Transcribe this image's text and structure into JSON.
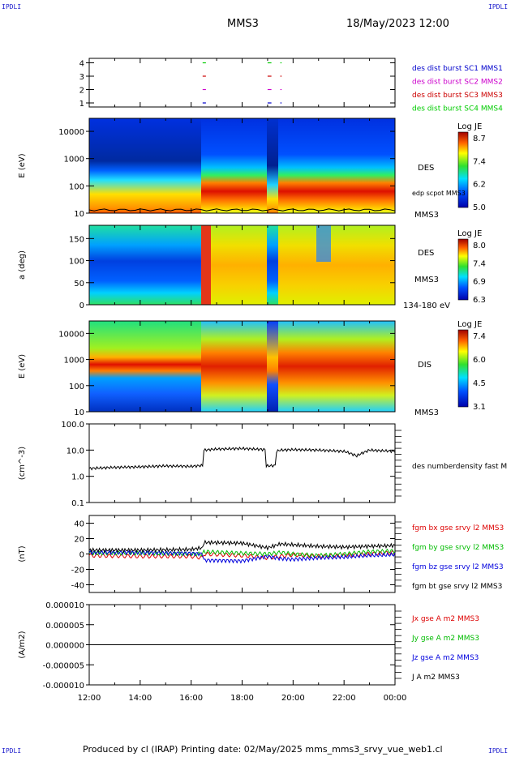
{
  "header": {
    "corner_label": "IPDLI",
    "spacecraft": "MMS3",
    "date": "18/May/2023 12:00"
  },
  "footer": {
    "text": "Produced by cl (IRAP)   Printing date: 02/May/2025   mms_mms3_srvy_vue_web1.cl"
  },
  "colors": {
    "mms1": "#0000cc",
    "mms2": "#cc00cc",
    "mms3": "#cc0000",
    "mms4": "#00cc00",
    "bx": "#dd0000",
    "by": "#00bb00",
    "bz": "#0000dd",
    "bt": "#000000"
  },
  "chart_data": [
    {
      "type": "timeline",
      "panel": "burst availability",
      "ytick_labels": [
        "4",
        "3",
        "2",
        "1"
      ],
      "legend": [
        {
          "label": "des dist burst SC1 MMS1",
          "color": "#0000cc"
        },
        {
          "label": "des dist burst SC2 MMS2",
          "color": "#cc00cc"
        },
        {
          "label": "des dist burst SC3 MMS3",
          "color": "#cc0000"
        },
        {
          "label": "des dist burst SC4 MMS4",
          "color": "#00cc00"
        }
      ],
      "intervals_hours": [
        [
          16.45,
          16.58
        ],
        [
          19.0,
          19.15
        ],
        [
          19.5,
          19.55
        ]
      ]
    },
    {
      "type": "heatmap",
      "panel": "DES energy spectrogram",
      "ylabel": "E (eV)",
      "yscale": "log",
      "ylim": [
        10,
        30000
      ],
      "ytick_labels": [
        "10000",
        "1000",
        "100",
        "10"
      ],
      "right_labels": [
        "DES",
        "MMS3"
      ],
      "overlay_label": "edp scpot MMS3",
      "colorbar": {
        "title": "Log JE",
        "ticks": [
          "8.7",
          "7.4",
          "6.2",
          "5.0"
        ]
      }
    },
    {
      "type": "heatmap",
      "panel": "DES pitch angle",
      "ylabel": "a (deg)",
      "ylim": [
        0,
        180
      ],
      "ytick_labels": [
        "150",
        "100",
        "50",
        "0"
      ],
      "right_labels": [
        "DES",
        "MMS3",
        "134-180 eV"
      ],
      "colorbar": {
        "title": "Log JE",
        "ticks": [
          "8.0",
          "7.4",
          "6.9",
          "6.3"
        ]
      }
    },
    {
      "type": "heatmap",
      "panel": "DIS energy spectrogram",
      "ylabel": "E (eV)",
      "yscale": "log",
      "ylim": [
        10,
        30000
      ],
      "ytick_labels": [
        "10000",
        "1000",
        "100",
        "10"
      ],
      "right_labels": [
        "DIS",
        "MMS3"
      ],
      "colorbar": {
        "title": "Log JE",
        "ticks": [
          "7.4",
          "6.0",
          "4.5",
          "3.1"
        ]
      }
    },
    {
      "type": "line",
      "panel": "number density",
      "ylabel": "(cm^-3)",
      "yscale": "log",
      "ylim": [
        0.1,
        100
      ],
      "ytick_labels": [
        "100.0",
        "10.0",
        "1.0",
        "0.1"
      ],
      "series": [
        {
          "name": "des numberdensity fast M",
          "color": "#000000",
          "x": [
            12.0,
            13.0,
            14.0,
            15.0,
            16.0,
            16.45,
            16.5,
            17.0,
            18.0,
            18.9,
            18.95,
            19.3,
            19.35,
            19.5,
            20.0,
            21.0,
            22.0,
            22.5,
            23.0,
            24.0
          ],
          "y": [
            2.0,
            2.2,
            2.3,
            2.5,
            2.4,
            2.6,
            10.0,
            11.0,
            11.5,
            10.5,
            2.5,
            2.6,
            9.0,
            10.0,
            10.5,
            10.0,
            9.0,
            6.0,
            10.0,
            9.0
          ]
        }
      ]
    },
    {
      "type": "line",
      "panel": "magnetic field",
      "ylabel": "(nT)",
      "ylim": [
        -50,
        50
      ],
      "ytick_labels": [
        "40",
        "20",
        "0",
        "-20",
        "-40"
      ],
      "series": [
        {
          "name": "fgm bx gse srvy l2 MMS3",
          "color": "#dd0000",
          "x": [
            12,
            14,
            16,
            16.45,
            16.5,
            18,
            19,
            19.5,
            20,
            21,
            22,
            23,
            24
          ],
          "y": [
            -2,
            -3,
            -3,
            -5,
            0,
            -2,
            -5,
            -3,
            -1,
            -3,
            -2,
            0,
            2
          ]
        },
        {
          "name": "fgm by gse srvy l2 MMS3",
          "color": "#00bb00",
          "x": [
            12,
            14,
            16,
            16.45,
            16.5,
            18,
            19,
            19.5,
            20,
            21,
            22,
            23,
            24
          ],
          "y": [
            1,
            1,
            0,
            0,
            3,
            1,
            0,
            2,
            0,
            -2,
            0,
            3,
            4
          ]
        },
        {
          "name": "fgm bz gse srvy l2 MMS3",
          "color": "#0000dd",
          "x": [
            12,
            14,
            16,
            16.45,
            16.5,
            18,
            19,
            19.5,
            20,
            21,
            22,
            23,
            24
          ],
          "y": [
            2,
            2,
            1,
            0,
            -8,
            -9,
            -3,
            -6,
            -7,
            -5,
            -4,
            -2,
            -1
          ]
        },
        {
          "name": "fgm bt gse srvy l2 MMS3",
          "color": "#000000",
          "x": [
            12,
            14,
            16,
            16.45,
            16.5,
            18,
            19,
            19.5,
            20,
            21,
            22,
            23,
            24
          ],
          "y": [
            5,
            5,
            6,
            8,
            15,
            14,
            8,
            13,
            12,
            10,
            9,
            10,
            11
          ]
        }
      ]
    },
    {
      "type": "line",
      "panel": "current density",
      "ylabel": "(A/m2)",
      "ylim": [
        -1e-05,
        1e-05
      ],
      "ytick_labels": [
        "0.000010",
        "0.000005",
        "0.000000",
        "-0.000005",
        "-0.000010"
      ],
      "xlabel_ticks": [
        "12:00",
        "14:00",
        "16:00",
        "18:00",
        "20:00",
        "22:00",
        "00:00"
      ],
      "xlim_hours": [
        12,
        24
      ],
      "series": [
        {
          "name": "Jx gse A m2 MMS3",
          "color": "#dd0000",
          "x": [
            12,
            24
          ],
          "y": [
            0,
            0
          ]
        },
        {
          "name": "Jy gse A m2 MMS3",
          "color": "#00bb00",
          "x": [
            12,
            24
          ],
          "y": [
            0,
            0
          ]
        },
        {
          "name": "Jz gse A m2 MMS3",
          "color": "#0000dd",
          "x": [
            12,
            24
          ],
          "y": [
            0,
            0
          ]
        },
        {
          "name": "J A m2 MMS3",
          "color": "#000000",
          "x": [
            12,
            24
          ],
          "y": [
            0,
            0
          ]
        }
      ]
    }
  ]
}
